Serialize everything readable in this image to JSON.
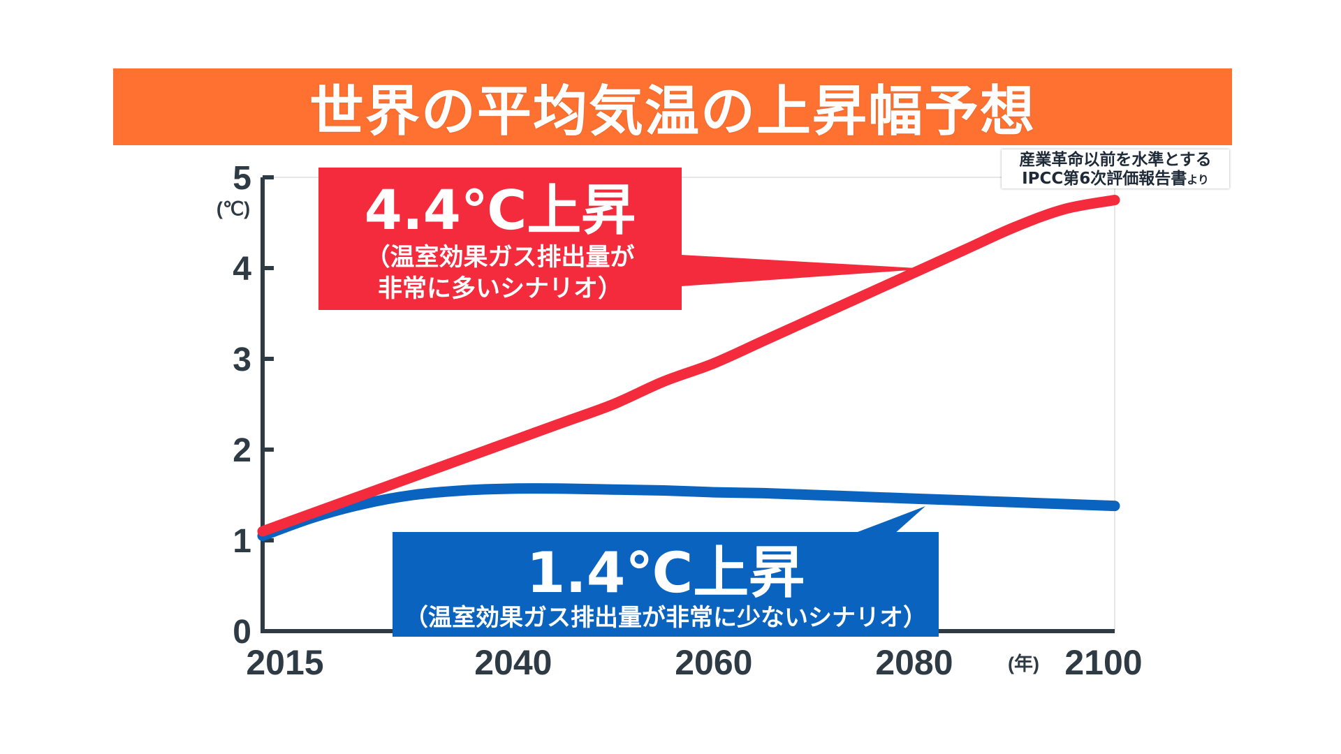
{
  "title": "世界の平均気温の上昇幅予想",
  "source_note": {
    "line1": "産業革命以前を水準とする",
    "line2_main": "IPCC第6次評価報告書",
    "line2_suffix": "より"
  },
  "colors": {
    "title_bg": "#fe7130",
    "high_scenario": "#f42b3c",
    "low_scenario": "#0a63bf",
    "axis": "#2e3a44"
  },
  "chart_data": {
    "type": "line",
    "title": "世界の平均気温の上昇幅予想",
    "xlabel": "(年)",
    "ylabel": "(℃)",
    "xlim": [
      2015,
      2100
    ],
    "ylim": [
      0,
      5
    ],
    "x_ticks": [
      "2015",
      "2040",
      "2060",
      "2080",
      "2100"
    ],
    "y_ticks": [
      "0",
      "1",
      "2",
      "3",
      "4",
      "5"
    ],
    "grid": false,
    "series": [
      {
        "name": "温室効果ガス排出量が非常に多いシナリオ",
        "color": "#f42b3c",
        "x": [
          2015,
          2020,
          2025,
          2030,
          2035,
          2040,
          2045,
          2050,
          2055,
          2060,
          2065,
          2070,
          2075,
          2080,
          2085,
          2090,
          2095,
          2100
        ],
        "values": [
          1.1,
          1.3,
          1.5,
          1.7,
          1.9,
          2.1,
          2.3,
          2.5,
          2.75,
          2.95,
          3.2,
          3.45,
          3.7,
          3.95,
          4.2,
          4.45,
          4.65,
          4.75
        ]
      },
      {
        "name": "温室効果ガス排出量が非常に少ないシナリオ",
        "color": "#0a63bf",
        "x": [
          2015,
          2020,
          2025,
          2030,
          2035,
          2040,
          2045,
          2050,
          2055,
          2060,
          2065,
          2070,
          2075,
          2080,
          2085,
          2090,
          2095,
          2100
        ],
        "values": [
          1.05,
          1.25,
          1.4,
          1.5,
          1.55,
          1.57,
          1.57,
          1.56,
          1.55,
          1.53,
          1.52,
          1.5,
          1.48,
          1.46,
          1.44,
          1.42,
          1.4,
          1.38
        ]
      }
    ],
    "annotations": [
      {
        "series": "high",
        "big": "4.4℃上昇",
        "line1": "（温室効果ガス排出量が",
        "line2": "非常に多いシナリオ）"
      },
      {
        "series": "low",
        "big": "1.4℃上昇",
        "line1": "（温室効果ガス排出量が非常に少ないシナリオ）"
      }
    ]
  }
}
